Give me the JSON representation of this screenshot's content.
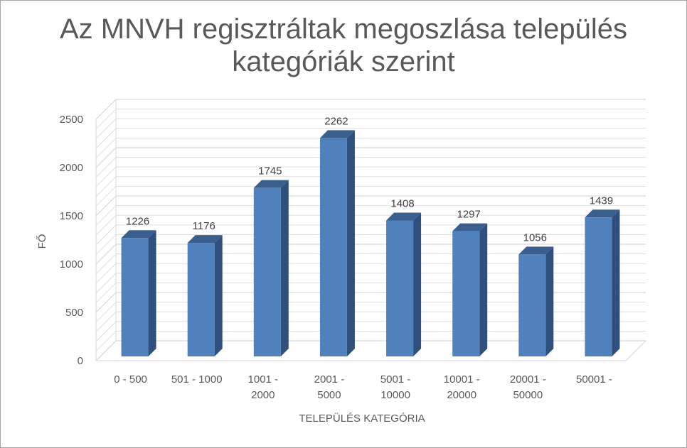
{
  "chart_data": {
    "type": "bar",
    "title_line1": "Az MNVH regisztráltak megoszlása település",
    "title_line2": "kategóriák szerint",
    "categories": [
      [
        "0 - 500"
      ],
      [
        "501 - 1000"
      ],
      [
        "1001 -",
        "2000"
      ],
      [
        "2001 -",
        "5000"
      ],
      [
        "5001 -",
        "10000"
      ],
      [
        "10001 -",
        "20000"
      ],
      [
        "20001 -",
        "50000"
      ],
      [
        "50001 -"
      ]
    ],
    "values": [
      1226,
      1176,
      1745,
      2262,
      1408,
      1297,
      1056,
      1439
    ],
    "xlabel": "TELEPÜLÉS KATEGÓRIA",
    "ylabel": "FŐ",
    "ylim": [
      0,
      2500
    ],
    "yticks": [
      0,
      500,
      1000,
      1500,
      2000,
      2500
    ],
    "grid": true,
    "legend": "none",
    "colors": {
      "bar_front": "#4f81bd",
      "bar_side": "#2f4f7c",
      "bar_top": "#3a5f8f",
      "grid": "#d9d9d9",
      "text": "#595959"
    }
  }
}
